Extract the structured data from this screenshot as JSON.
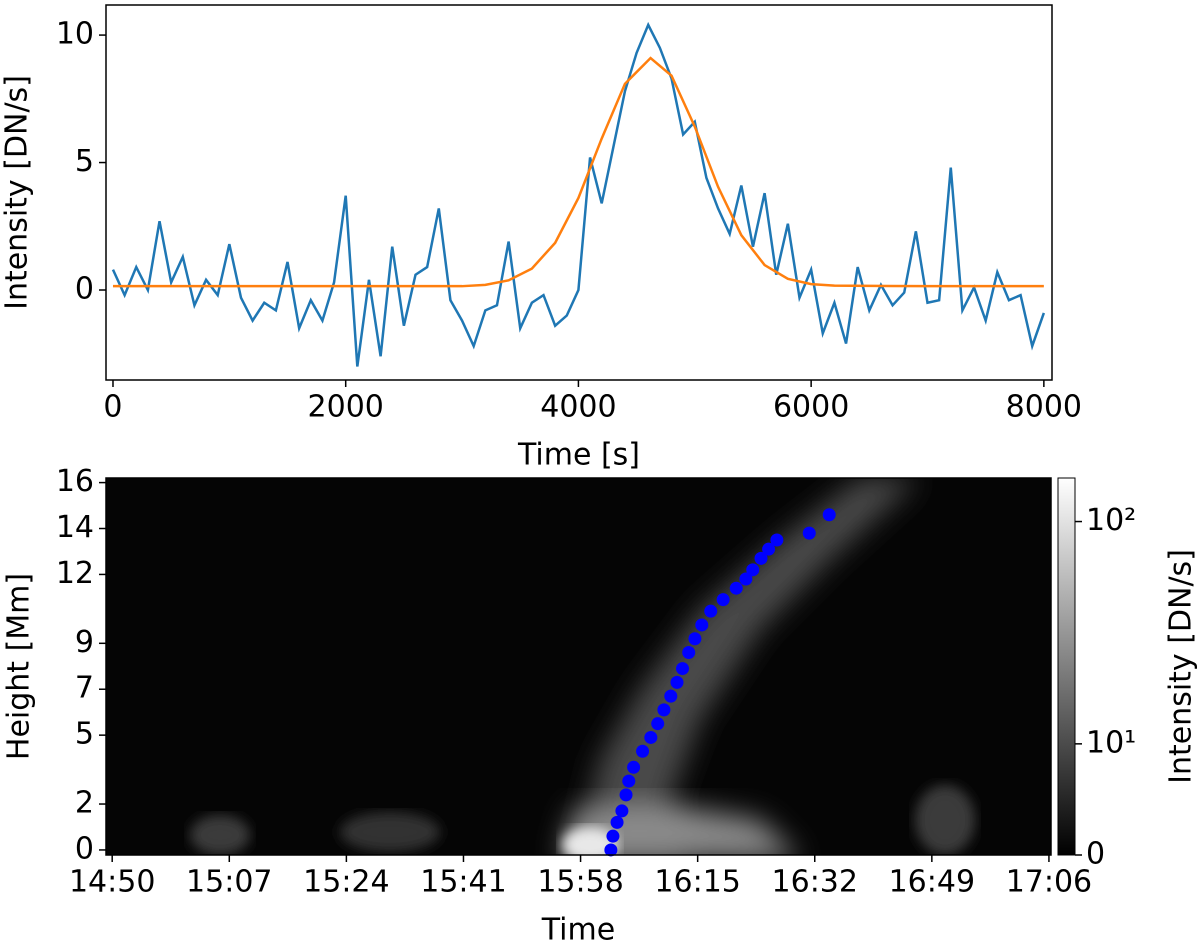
{
  "chart_data": [
    {
      "type": "line",
      "xlabel": "Time [s]",
      "ylabel": "Intensity [DN/s]",
      "xlim": [
        -60,
        8070
      ],
      "ylim": [
        -3.53,
        11.18
      ],
      "xticks": [
        0,
        2000,
        4000,
        6000,
        8000
      ],
      "yticks": [
        0,
        5,
        10
      ],
      "series": [
        {
          "color": "#1f77b4",
          "x": [
            0,
            100,
            200,
            300,
            400,
            500,
            600,
            700,
            800,
            900,
            1000,
            1100,
            1200,
            1300,
            1400,
            1500,
            1600,
            1700,
            1800,
            1900,
            2000,
            2100,
            2200,
            2300,
            2400,
            2500,
            2600,
            2700,
            2800,
            2900,
            3000,
            3100,
            3200,
            3300,
            3400,
            3500,
            3600,
            3700,
            3800,
            3900,
            4000,
            4100,
            4200,
            4300,
            4400,
            4500,
            4600,
            4700,
            4800,
            4900,
            5000,
            5100,
            5200,
            5300,
            5400,
            5500,
            5600,
            5700,
            5800,
            5900,
            6000,
            6100,
            6200,
            6300,
            6400,
            6500,
            6600,
            6700,
            6800,
            6900,
            7000,
            7100,
            7200,
            7300,
            7400,
            7500,
            7600,
            7700,
            7800,
            7900,
            8000
          ],
          "values": [
            0.8,
            -0.2,
            0.9,
            0,
            2.7,
            0.3,
            1.3,
            -0.6,
            0.4,
            -0.2,
            1.8,
            -0.3,
            -1.2,
            -0.5,
            -0.8,
            1.1,
            -1.5,
            -0.4,
            -1.2,
            0.3,
            3.7,
            -3.0,
            0.4,
            -2.6,
            1.7,
            -1.4,
            0.6,
            0.9,
            3.2,
            -0.4,
            -1.2,
            -2.2,
            -0.8,
            -0.6,
            1.9,
            -1.5,
            -0.5,
            -0.2,
            -1.4,
            -1.0,
            0.0,
            5.2,
            3.4,
            5.6,
            7.8,
            9.3,
            10.4,
            9.5,
            8.3,
            6.1,
            6.6,
            4.4,
            3.2,
            2.2,
            4.1,
            1.7,
            3.8,
            0.6,
            2.6,
            -0.3,
            0.8,
            -1.7,
            -0.5,
            -2.1,
            0.9,
            -0.8,
            0.2,
            -0.6,
            -0.1,
            2.3,
            -0.5,
            -0.4,
            4.8,
            -0.8,
            0.1,
            -1.2,
            0.7,
            -0.4,
            -0.2,
            -2.2,
            -0.9
          ]
        },
        {
          "color": "#ff7f0e",
          "x": [
            0,
            1000,
            2000,
            3000,
            3200,
            3400,
            3600,
            3800,
            4000,
            4200,
            4400,
            4620,
            4800,
            5000,
            5200,
            5400,
            5600,
            5800,
            6000,
            6200,
            7000,
            8000
          ],
          "values": [
            0.15,
            0.15,
            0.15,
            0.15,
            0.2,
            0.38,
            0.84,
            1.85,
            3.61,
            5.94,
            8.09,
            9.1,
            8.41,
            6.41,
            4.05,
            2.15,
            0.98,
            0.44,
            0.23,
            0.17,
            0.15,
            0.15
          ]
        }
      ]
    },
    {
      "type": "heatmap",
      "xlabel": "Time",
      "ylabel": "Height [Mm]",
      "xlim": [
        889.1,
        1026.3
      ],
      "ylim": [
        -0.22,
        16.2
      ],
      "xticks": [
        {
          "value": 890,
          "label": "14:50"
        },
        {
          "value": 907,
          "label": "15:07"
        },
        {
          "value": 924,
          "label": "15:24"
        },
        {
          "value": 941,
          "label": "15:41"
        },
        {
          "value": 958,
          "label": "15:58"
        },
        {
          "value": 975,
          "label": "16:15"
        },
        {
          "value": 992,
          "label": "16:32"
        },
        {
          "value": 1009,
          "label": "16:49"
        },
        {
          "value": 1026,
          "label": "17:06"
        }
      ],
      "yticks": [
        0,
        2,
        5,
        7,
        9,
        12,
        14,
        16
      ],
      "series": [
        {
          "color": "#0000ff",
          "x": [
            962.4,
            962.7,
            963.3,
            964.0,
            964.6,
            965.0,
            965.7,
            967.0,
            968.2,
            969.2,
            970.1,
            971.1,
            972.0,
            972.8,
            973.7,
            974.6,
            975.6,
            976.9,
            978.7,
            980.6,
            982.0,
            983.0,
            984.2,
            985.3,
            986.5,
            991.2,
            994.1
          ],
          "values": [
            0,
            0.6,
            1.2,
            1.7,
            2.4,
            3.0,
            3.6,
            4.3,
            4.9,
            5.5,
            6.1,
            6.7,
            7.3,
            7.9,
            8.6,
            9.2,
            9.8,
            10.4,
            10.9,
            11.4,
            11.8,
            12.2,
            12.7,
            13.1,
            13.5,
            13.8,
            14.6
          ]
        }
      ],
      "colorbar": {
        "label": "Intensity [DN/s]",
        "scale": "symlog",
        "linthresh": 10,
        "linscale": 0.5,
        "lim": [
          0,
          157
        ],
        "ticks": [
          {
            "value": 0,
            "label": "0"
          },
          {
            "value": 10,
            "label": "10¹"
          },
          {
            "value": 100,
            "label": "10²"
          }
        ]
      }
    }
  ]
}
